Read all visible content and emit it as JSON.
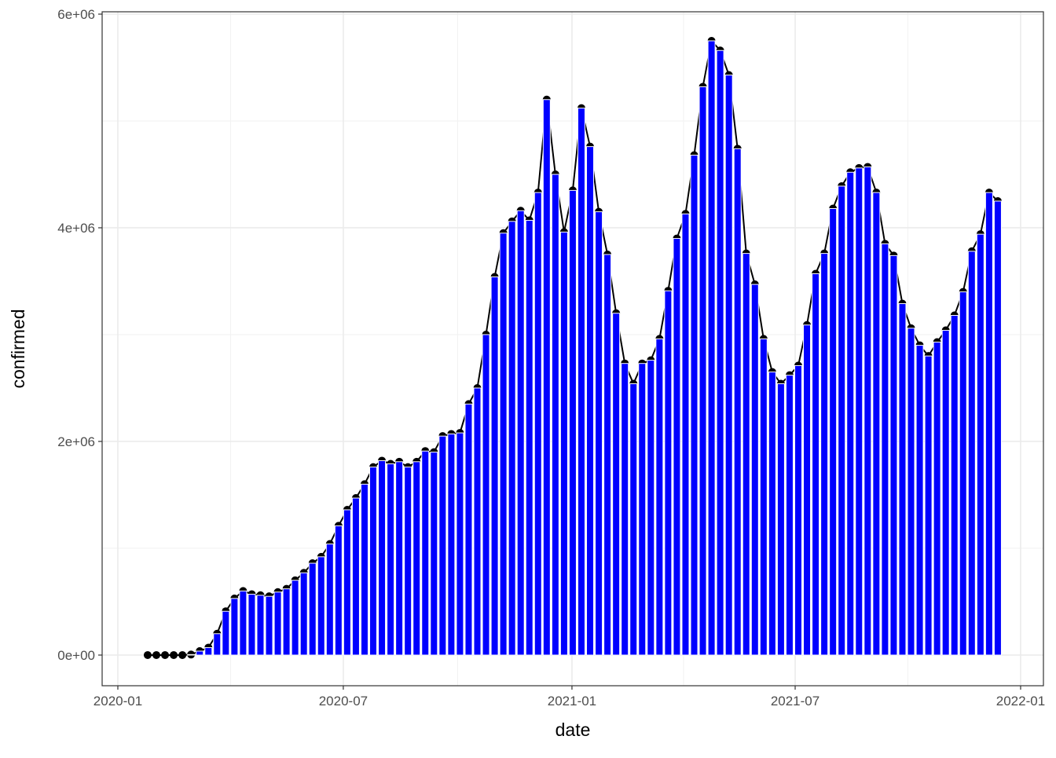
{
  "chart_data": {
    "type": "bar",
    "x_label": "date",
    "y_label": "confirmed",
    "categories": [
      null,
      null,
      null,
      null,
      null,
      null,
      null,
      null,
      null,
      null,
      null,
      null,
      null,
      null,
      null,
      null,
      null,
      null,
      null,
      null,
      null,
      null,
      null,
      null,
      null,
      null,
      null,
      null,
      null,
      null,
      null,
      null,
      null,
      null,
      null,
      null,
      null,
      null,
      null,
      null,
      null,
      null,
      null,
      null,
      null,
      null,
      null,
      null,
      null,
      null,
      null,
      null,
      null,
      null,
      null,
      null,
      null,
      null,
      null,
      null,
      null,
      null,
      null,
      null,
      null,
      null,
      null,
      null,
      null,
      null,
      null,
      null,
      null,
      null,
      null,
      null,
      null,
      null,
      null,
      null,
      null,
      null,
      null,
      null,
      null,
      null,
      null,
      null,
      null,
      null,
      null,
      null,
      null,
      null,
      null,
      null,
      null,
      null,
      null
    ],
    "values": [
      0,
      0,
      0,
      0,
      0,
      5000,
      37000,
      70000,
      200000,
      410000,
      530000,
      600000,
      570000,
      560000,
      550000,
      590000,
      620000,
      700000,
      770000,
      860000,
      920000,
      1040000,
      1210000,
      1360000,
      1470000,
      1600000,
      1760000,
      1820000,
      1790000,
      1810000,
      1760000,
      1810000,
      1910000,
      1900000,
      2050000,
      2070000,
      2080000,
      2350000,
      2500000,
      3000000,
      3540000,
      3950000,
      4060000,
      4160000,
      4070000,
      4330000,
      5200000,
      4500000,
      3960000,
      4350000,
      5120000,
      4760000,
      4150000,
      3750000,
      3200000,
      2730000,
      2540000,
      2730000,
      2760000,
      2960000,
      3410000,
      3900000,
      4130000,
      4680000,
      5320000,
      5750000,
      5660000,
      5430000,
      4740000,
      3760000,
      3470000,
      2960000,
      2650000,
      2540000,
      2620000,
      2710000,
      3090000,
      3570000,
      3760000,
      4180000,
      4390000,
      4520000,
      4560000,
      4570000,
      4330000,
      3850000,
      3740000,
      3290000,
      3060000,
      2900000,
      2800000,
      2930000,
      3040000,
      3180000,
      3400000,
      3780000,
      3940000,
      4330000,
      4250000
    ],
    "color": "#0000ff",
    "line_color": "#000000",
    "point_color": "#000000",
    "xlim": [
      -5.25,
      103.26
    ],
    "xticks": [
      {
        "value": -3.44,
        "label": "2020-01"
      },
      {
        "value": 22.55,
        "label": "2020-07"
      },
      {
        "value": 48.91,
        "label": "2021-01"
      },
      {
        "value": 74.64,
        "label": "2021-07"
      },
      {
        "value": 100.63,
        "label": "2022-01"
      }
    ],
    "ylim": [
      -287000,
      6022000
    ],
    "yticks": [
      {
        "value": 0,
        "label": "0e+00"
      },
      {
        "value": 2000000,
        "label": "2e+06"
      },
      {
        "value": 4000000,
        "label": "4e+06"
      },
      {
        "value": 6000000,
        "label": "6e+06"
      }
    ],
    "grid": true
  }
}
